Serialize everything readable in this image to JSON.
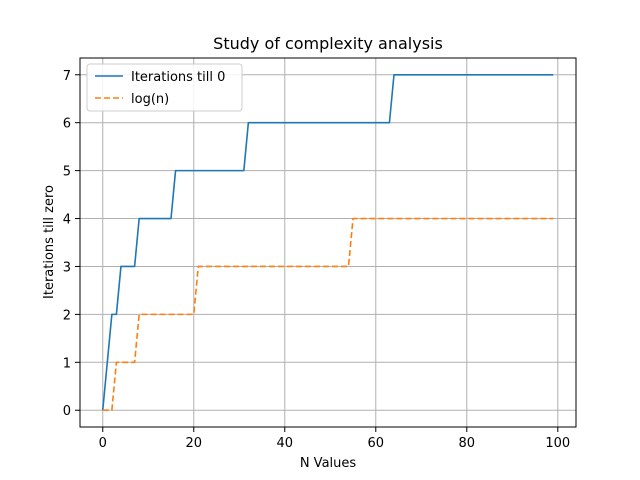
{
  "chart_data": {
    "type": "line",
    "title": "Study of complexity analysis",
    "xlabel": "N Values",
    "ylabel": "Iterations till zero",
    "xlim": [
      -5,
      104
    ],
    "ylim": [
      -0.35,
      7.35
    ],
    "xticks": [
      0,
      20,
      40,
      60,
      80,
      100
    ],
    "yticks": [
      0,
      1,
      2,
      3,
      4,
      5,
      6,
      7
    ],
    "grid": true,
    "legend": "top-left",
    "series": [
      {
        "name": "Iterations till 0",
        "color": "#1f77b4",
        "style": "solid",
        "x": [
          0,
          2,
          3,
          4,
          7,
          8,
          15,
          16,
          31,
          32,
          63,
          64,
          99
        ],
        "y": [
          0,
          2,
          2,
          3,
          3,
          4,
          4,
          5,
          5,
          6,
          6,
          7,
          7
        ]
      },
      {
        "name": "log(n)",
        "color": "#ff7f0e",
        "style": "dashed",
        "x": [
          0,
          2,
          3,
          7,
          8,
          20,
          21,
          54,
          55,
          99
        ],
        "y": [
          0,
          0,
          1,
          1,
          2,
          2,
          3,
          3,
          4,
          4
        ]
      }
    ]
  }
}
